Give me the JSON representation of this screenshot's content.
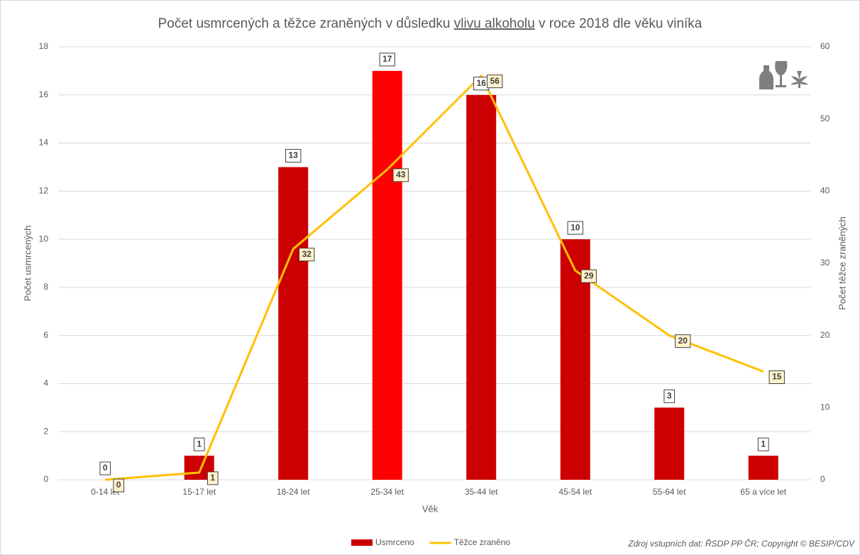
{
  "chart_data": {
    "type": "bar_line",
    "title": {
      "before": "Počet usmrcených a těžce zraněných v důsledku ",
      "underlined": "vlivu alkoholu",
      "after": " v roce 2018 dle věku viníka"
    },
    "x_label": "Věk",
    "y_label": "Počet usmrcených",
    "y2_label": "Počet těžce zraněných",
    "source": "Zdroj vstupních dat: ŘSDP PP ČR; Copyright © BESIP/CDV",
    "categories": [
      "0-14 let",
      "15-17 let",
      "18-24 let",
      "25-34 let",
      "35-44 let",
      "45-54 let",
      "55-64 let",
      "65 a více let"
    ],
    "series": [
      {
        "name": "Usmrceno",
        "type": "bar",
        "color": "#cc0000",
        "colors": [
          "#cc0000",
          "#cc0000",
          "#cc0000",
          "#ff0000",
          "#cc0000",
          "#cc0000",
          "#cc0000",
          "#cc0000"
        ],
        "values": [
          0,
          1,
          13,
          17,
          16,
          10,
          3,
          1
        ]
      },
      {
        "name": "Těžce zraněno",
        "type": "line",
        "axis": "y2",
        "color": "#ffc000",
        "values": [
          0,
          1,
          32,
          43,
          56,
          29,
          20,
          15
        ]
      }
    ],
    "ylim": [
      0,
      18
    ],
    "yticks": [
      0,
      2,
      4,
      6,
      8,
      10,
      12,
      14,
      16,
      18
    ],
    "y2lim": [
      0,
      60
    ],
    "y2ticks": [
      0,
      10,
      20,
      30,
      40,
      50,
      60
    ],
    "grid": true,
    "legend": "bottom"
  }
}
